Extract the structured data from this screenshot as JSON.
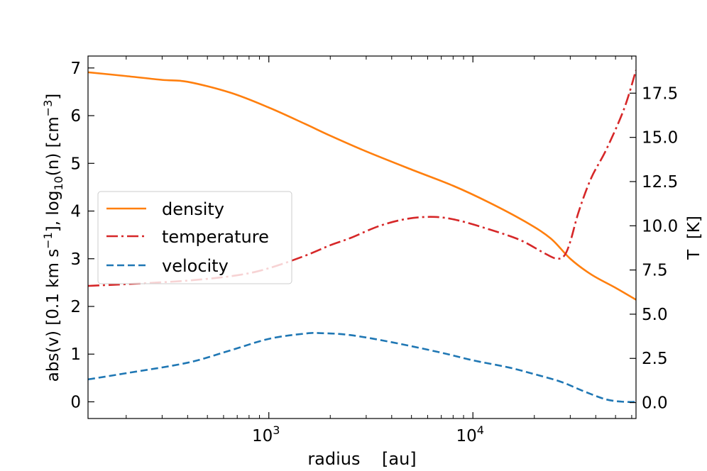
{
  "chart_data": {
    "type": "line",
    "title": "",
    "xlabel": "radius    [au]",
    "ylabel_left": "abs(v)  [0.1 km s^-1],  log10(n)  [cm^-3]",
    "ylabel_right": "T  [K]",
    "xscale": "log",
    "xlim": [
      130,
      63000
    ],
    "ylim_left": [
      -0.35,
      7.25
    ],
    "ylim_right": [
      -0.9,
      19.6
    ],
    "x_ticks": [
      {
        "value": 1000,
        "label": "10",
        "exp": "3"
      },
      {
        "value": 10000,
        "label": "10",
        "exp": "4"
      }
    ],
    "y_ticks_left": [
      0,
      1,
      2,
      3,
      4,
      5,
      6,
      7
    ],
    "y_ticks_right": [
      {
        "value": 0,
        "label": "0.0"
      },
      {
        "value": 2.5,
        "label": "2.5"
      },
      {
        "value": 5,
        "label": "5.0"
      },
      {
        "value": 7.5,
        "label": "7.5"
      },
      {
        "value": 10,
        "label": "10.0"
      },
      {
        "value": 12.5,
        "label": "12.5"
      },
      {
        "value": 15,
        "label": "15.0"
      },
      {
        "value": 17.5,
        "label": "17.5"
      }
    ],
    "legend_position": "center-left",
    "series": [
      {
        "name": "density",
        "axis": "left",
        "color": "#ff7f0e",
        "style": "solid",
        "x": [
          130,
          200,
          300,
          400,
          650,
          1000,
          1500,
          2000,
          3000,
          5000,
          8000,
          12000,
          18000,
          24000,
          30000,
          38000,
          50000,
          63000
        ],
        "y": [
          6.91,
          6.83,
          6.75,
          6.71,
          6.48,
          6.17,
          5.83,
          5.58,
          5.25,
          4.87,
          4.53,
          4.18,
          3.78,
          3.43,
          3.0,
          2.67,
          2.39,
          2.14
        ]
      },
      {
        "name": "temperature",
        "axis": "right",
        "color": "#d62728",
        "style": "dashdot",
        "x": [
          130,
          200,
          400,
          700,
          1000,
          1500,
          2000,
          2500,
          3500,
          4800,
          6500,
          8500,
          12000,
          17000,
          22000,
          25500,
          28000,
          30000,
          33000,
          38000,
          45000,
          55000,
          63000
        ],
        "y": [
          6.6,
          6.7,
          6.9,
          7.2,
          7.6,
          8.3,
          8.9,
          9.3,
          10.0,
          10.4,
          10.5,
          10.3,
          9.8,
          9.2,
          8.5,
          8.15,
          8.3,
          9.1,
          10.8,
          12.7,
          14.3,
          16.6,
          18.8
        ]
      },
      {
        "name": "velocity",
        "axis": "left",
        "color": "#1f77b4",
        "style": "dashed",
        "x": [
          130,
          200,
          400,
          650,
          1000,
          1500,
          1800,
          2500,
          4000,
          7000,
          10000,
          15000,
          20000,
          27000,
          35000,
          45000,
          55000,
          63000
        ],
        "y": [
          0.47,
          0.6,
          0.82,
          1.08,
          1.32,
          1.43,
          1.44,
          1.4,
          1.25,
          1.03,
          0.87,
          0.72,
          0.58,
          0.42,
          0.22,
          0.05,
          0.0,
          0.0
        ]
      }
    ]
  }
}
